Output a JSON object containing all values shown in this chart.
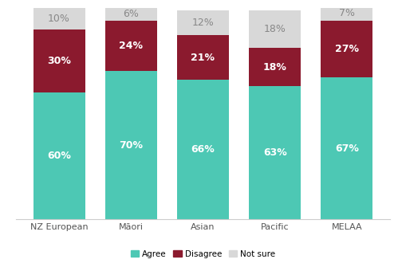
{
  "categories": [
    "NZ European",
    "Māori",
    "Asian",
    "Pacific",
    "MELAA"
  ],
  "agree": [
    60,
    70,
    66,
    63,
    67
  ],
  "disagree": [
    30,
    24,
    21,
    18,
    27
  ],
  "not_sure": [
    10,
    6,
    12,
    18,
    7
  ],
  "color_agree": "#4DC8B4",
  "color_disagree": "#8B1A2E",
  "color_not_sure": "#D8D8D8",
  "bar_width": 0.72,
  "ylim": [
    0,
    100
  ],
  "legend_labels": [
    "Agree",
    "Disagree",
    "Not sure"
  ],
  "label_fontsize": 9,
  "tick_fontsize": 8,
  "legend_fontsize": 7.5,
  "not_sure_text_color": "#888888"
}
